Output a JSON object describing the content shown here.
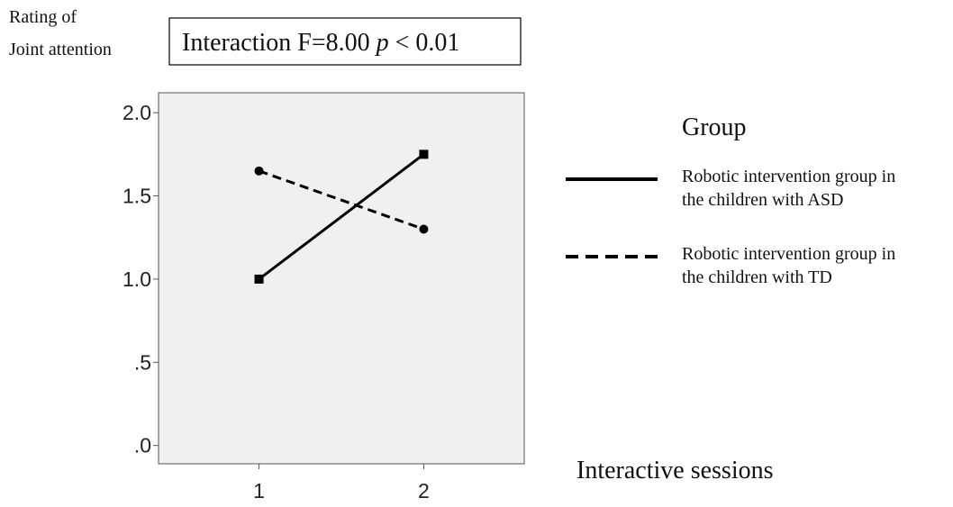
{
  "chart_data": {
    "type": "line",
    "annotation": [
      "Interaction F=8.00",
      "p",
      "< 0.01"
    ],
    "ylabel": [
      "Rating of",
      "Joint attention"
    ],
    "xlabel": "Interactive sessions",
    "legend_title": "Group",
    "x": [
      1,
      2
    ],
    "xlim": [
      0.39,
      2.61
    ],
    "xticks": [
      1,
      2
    ],
    "ylim": [
      -0.11,
      2.12
    ],
    "yticks": [
      {
        "value": 0,
        "label": ".0"
      },
      {
        "value": 0.5,
        "label": ".5"
      },
      {
        "value": 1,
        "label": "1.0"
      },
      1.5,
      {
        "value": 2,
        "label": "2.0"
      }
    ],
    "series": [
      {
        "name": "Robotic intervention group in the children with ASD",
        "color": "#000000",
        "linestyle": "solid",
        "marker": "square",
        "values": [
          1.0,
          1.75
        ]
      },
      {
        "name": "Robotic intervention group in the children with TD",
        "color": "#000000",
        "linestyle": "dashed",
        "marker": "circle",
        "values": [
          1.65,
          1.3
        ]
      }
    ]
  }
}
